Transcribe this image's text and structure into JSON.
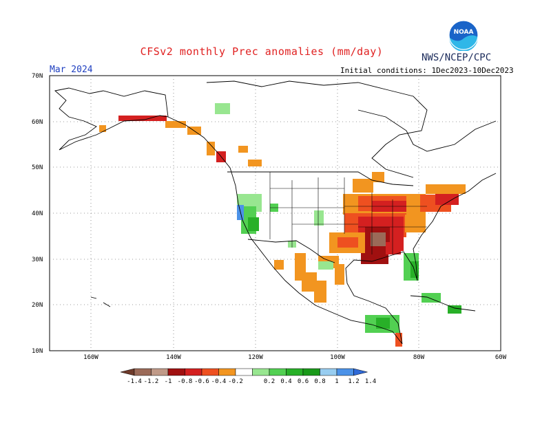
{
  "header": {
    "title": "CFSv2 monthly Prec anomalies (mm/day)",
    "agency": "NWS/NCEP/CPC",
    "month": "Mar 2024",
    "initial_conditions": "Initial conditions: 1Dec2023-10Dec2023",
    "logo_text": "NOAA"
  },
  "axes": {
    "lat_labels": [
      "70N",
      "60N",
      "50N",
      "40N",
      "30N",
      "20N",
      "10N"
    ],
    "lon_labels": [
      "160W",
      "140W",
      "120W",
      "100W",
      "80W",
      "60W"
    ]
  },
  "legend": {
    "tick_labels": [
      "-1.4",
      "-1.2",
      "-1",
      "-0.8",
      "-0.6",
      "-0.4",
      "-0.2",
      "0.2",
      "0.4",
      "0.6",
      "0.8",
      "1",
      "1.2",
      "1.4"
    ],
    "colors": [
      "#6e3b2b",
      "#9b6a58",
      "#c09a88",
      "#a01010",
      "#d42020",
      "#ee5020",
      "#f29520",
      "#ffffff",
      "#98e690",
      "#52d052",
      "#28b028",
      "#1a9a1a",
      "#98cdf0",
      "#4b92e8",
      "#2f6ad8"
    ]
  },
  "colors": {
    "dry_strong": "#a01010",
    "dry_medium": "#d42020",
    "dry_light": "#ee5020",
    "dry_weak": "#f29520",
    "wet_weak": "#98e690",
    "wet_light": "#52d052",
    "wet_medium": "#28b028",
    "wet_blue": "#4b92e8"
  }
}
